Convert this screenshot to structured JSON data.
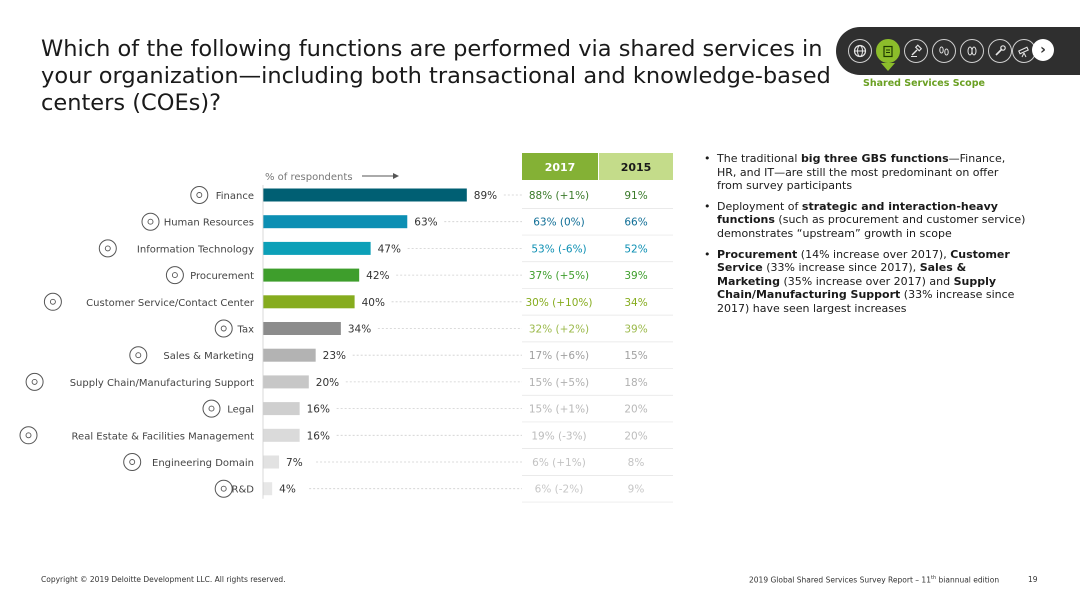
{
  "title": "Which of the following functions are performed via shared services in your organization—including both transactional and knowledge-based centers (COEs)?",
  "nav": {
    "icons": [
      "globe-icon",
      "clipboard-icon",
      "gavel-icon",
      "footprints-icon",
      "lightbulb-icon",
      "wrench-icon",
      "telescope-icon"
    ],
    "active_index": 1,
    "caption": "Shared Services Scope"
  },
  "chart_data": {
    "type": "bar",
    "orientation": "horizontal",
    "axis_note": "% of respondents",
    "categories": [
      "Finance",
      "Human Resources",
      "Information Technology",
      "Procurement",
      "Customer Service/Contact Center",
      "Tax",
      "Sales & Marketing",
      "Supply Chain/Manufacturing Support",
      "Legal",
      "Real Estate & Facilities Management",
      "Engineering Domain",
      "R&D"
    ],
    "icons": [
      "dollar-icon",
      "people-icon",
      "it-icon",
      "procurement-icon",
      "headset-icon",
      "percent-icon",
      "thermometer-icon",
      "supply-chain-icon",
      "gavel-icon",
      "building-icon",
      "hardhat-icon",
      "rnd-icon"
    ],
    "values": [
      89,
      63,
      47,
      42,
      40,
      34,
      23,
      20,
      16,
      16,
      7,
      4
    ],
    "value_labels": [
      "89%",
      "63%",
      "47%",
      "42%",
      "40%",
      "34%",
      "23%",
      "20%",
      "16%",
      "16%",
      "7%",
      "4%"
    ],
    "bar_colors": [
      "#005f73",
      "#0c8fb3",
      "#0ca0b8",
      "#3e9e2c",
      "#86ac1e",
      "#8c8c8c",
      "#b3b3b3",
      "#c7c7c7",
      "#cfcfcf",
      "#dadada",
      "#e2e2e2",
      "#e7e7e7"
    ],
    "xlim": [
      0,
      100
    ],
    "table": {
      "headers": [
        "2017",
        "2015"
      ],
      "header_colors": [
        "#84b135",
        "#c4dc8a"
      ],
      "col_2017": [
        "88% (+1%)",
        "63% (0%)",
        "53% (-6%)",
        "37% (+5%)",
        "30% (+10%)",
        "32% (+2%)",
        "17% (+6%)",
        "15% (+5%)",
        "15% (+1%)",
        "19% (-3%)",
        "6% (+1%)",
        "6% (-2%)"
      ],
      "col_2015": [
        "91%",
        "66%",
        "52%",
        "39%",
        "34%",
        "39%",
        "15%",
        "18%",
        "20%",
        "20%",
        "8%",
        "9%"
      ],
      "text_colors": [
        "#3a7a2a",
        "#0f6e96",
        "#0c8fb3",
        "#3e9e2c",
        "#86ac1e",
        "#9bb94a",
        "#a0a0a0",
        "#b0b0b0",
        "#b8b8b8",
        "#bdbdbd",
        "#c3c3c3",
        "#c7c7c7"
      ]
    }
  },
  "notes": [
    [
      {
        "t": "The traditional ",
        "b": false
      },
      {
        "t": "big three GBS functions",
        "b": true
      },
      {
        "t": "—Finance, HR, and IT—are still the most predominant on offer from survey participants",
        "b": false
      }
    ],
    [
      {
        "t": "Deployment of ",
        "b": false
      },
      {
        "t": "strategic and interaction-heavy functions",
        "b": true
      },
      {
        "t": " (such as procurement and customer service) demonstrates “upstream” growth in scope",
        "b": false
      }
    ],
    [
      {
        "t": "Procurement",
        "b": true
      },
      {
        "t": " (14% increase over 2017), ",
        "b": false
      },
      {
        "t": "Customer Service",
        "b": true
      },
      {
        "t": " (33% increase since 2017), ",
        "b": false
      },
      {
        "t": "Sales & Marketing",
        "b": true
      },
      {
        "t": " (35% increase over 2017) and ",
        "b": false
      },
      {
        "t": "Supply Chain/Manufacturing Support",
        "b": true
      },
      {
        "t": " (33% increase since 2017) have seen largest increases",
        "b": false
      }
    ]
  ],
  "footer": {
    "copyright": "Copyright © 2019 Deloitte Development LLC. All rights reserved.",
    "report_prefix": "2019 Global Shared Services Survey Report – 11",
    "report_sup": "th",
    "report_suffix": " biannual edition",
    "page": "19"
  }
}
